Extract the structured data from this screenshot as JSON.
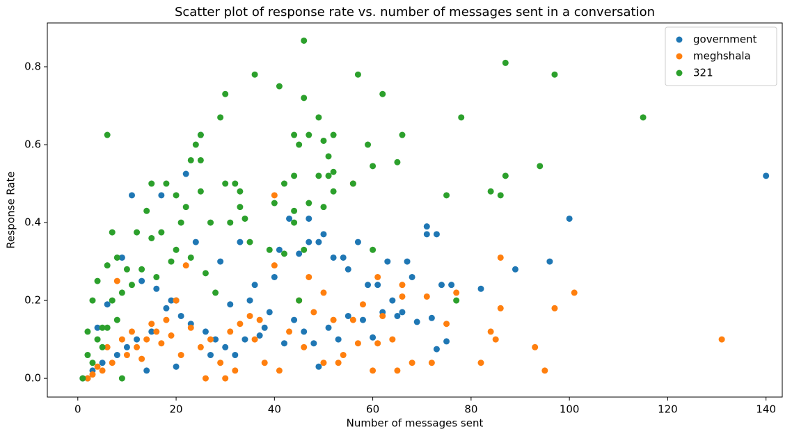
{
  "chart_data": {
    "type": "scatter",
    "title": "Scatter plot of response rate vs. number of messages sent in a conversation",
    "x_label": "Number of messages sent",
    "y_label": "Response Rate",
    "xlim": [
      -6.2,
      143.3
    ],
    "ylim": [
      -0.048,
      0.9125
    ],
    "xticks": [
      0,
      20,
      40,
      60,
      80,
      100,
      120,
      140
    ],
    "yticks": [
      {
        "value": 0,
        "label": "0.0"
      },
      0.2,
      0.4,
      0.6,
      0.8
    ],
    "legend": "upper right",
    "series": [
      {
        "name": "government",
        "color": "#1f77b4",
        "x": [
          140,
          100,
          96,
          89,
          82,
          76,
          74,
          71,
          71,
          73,
          67,
          68,
          69,
          72,
          73,
          75,
          65,
          66,
          63,
          61,
          59,
          60,
          57,
          55,
          54,
          52,
          50,
          49,
          47,
          45,
          43,
          47,
          41,
          40,
          25,
          22,
          11,
          17,
          24,
          29,
          33,
          36,
          20,
          18,
          15,
          12,
          10,
          8,
          5,
          3,
          1,
          2,
          4,
          6,
          9,
          13,
          16,
          19,
          21,
          23,
          26,
          28,
          30,
          32,
          34,
          37,
          38,
          42,
          44,
          46,
          48,
          49,
          51,
          53,
          55,
          58,
          62,
          64,
          14,
          20,
          27,
          31,
          35,
          39
        ],
        "y": [
          0.52,
          0.41,
          0.3,
          0.28,
          0.23,
          0.24,
          0.24,
          0.39,
          0.37,
          0.37,
          0.3,
          0.26,
          0.145,
          0.155,
          0.075,
          0.095,
          0.16,
          0.17,
          0.3,
          0.24,
          0.24,
          0.105,
          0.35,
          0.28,
          0.31,
          0.31,
          0.37,
          0.35,
          0.35,
          0.32,
          0.41,
          0.41,
          0.33,
          0.26,
          0.625,
          0.525,
          0.47,
          0.47,
          0.35,
          0.3,
          0.35,
          0.24,
          0.2,
          0.18,
          0.12,
          0.1,
          0.08,
          0.06,
          0.04,
          0.02,
          0,
          0,
          0.13,
          0.19,
          0.31,
          0.25,
          0.23,
          0.2,
          0.16,
          0.14,
          0.12,
          0.1,
          0.08,
          0.06,
          0.1,
          0.11,
          0.13,
          0.09,
          0.15,
          0.12,
          0.09,
          0.03,
          0.13,
          0.1,
          0.16,
          0.15,
          0.17,
          0.2,
          0.02,
          0.03,
          0.06,
          0.19,
          0.2,
          0.17
        ]
      },
      {
        "name": "meghshala",
        "color": "#ff7f0e",
        "x": [
          131,
          101,
          97,
          95,
          93,
          86,
          86,
          85,
          84,
          82,
          77,
          75,
          72,
          71,
          68,
          65,
          66,
          66,
          64,
          61,
          61,
          60,
          57,
          56,
          56,
          53,
          52,
          50,
          47,
          45,
          40,
          40,
          38,
          35,
          32,
          30,
          26,
          22,
          20,
          18,
          16,
          14,
          12,
          10,
          8,
          7,
          5,
          3,
          2,
          4,
          6,
          9,
          11,
          13,
          15,
          17,
          19,
          21,
          23,
          25,
          27,
          29,
          31,
          33,
          36,
          37,
          41,
          43,
          46,
          48,
          50,
          54,
          58,
          62
        ],
        "y": [
          0.1,
          0.22,
          0.18,
          0.02,
          0.08,
          0.31,
          0.18,
          0.1,
          0.12,
          0.04,
          0.22,
          0.14,
          0.04,
          0.21,
          0.04,
          0.02,
          0.21,
          0.24,
          0.1,
          0.26,
          0.09,
          0.02,
          0.09,
          0.5,
          0.15,
          0.04,
          0.15,
          0.04,
          0.26,
          0.2,
          0.47,
          0.29,
          0.04,
          0.16,
          0.02,
          0,
          0,
          0.29,
          0.2,
          0.15,
          0.12,
          0.1,
          0.08,
          0.06,
          0.25,
          0.04,
          0.02,
          0.01,
          0,
          0.03,
          0.08,
          0.1,
          0.12,
          0.05,
          0.14,
          0.09,
          0.11,
          0.06,
          0.13,
          0.08,
          0.1,
          0.04,
          0.12,
          0.14,
          0.1,
          0.15,
          0.02,
          0.12,
          0.08,
          0.17,
          0.22,
          0.06,
          0.19,
          0.16
        ]
      },
      {
        "name": "321",
        "color": "#2ca02c",
        "x": [
          46,
          87,
          36,
          57,
          97,
          41,
          30,
          62,
          46,
          29,
          49,
          78,
          115,
          6,
          25,
          44,
          47,
          52,
          66,
          24,
          45,
          50,
          59,
          51,
          23,
          25,
          60,
          65,
          94,
          52,
          44,
          49,
          51,
          87,
          15,
          18,
          30,
          32,
          42,
          56,
          20,
          22,
          25,
          33,
          52,
          75,
          84,
          86,
          40,
          47,
          50,
          14,
          44,
          34,
          21,
          27,
          44,
          7,
          12,
          15,
          17,
          31,
          33,
          8,
          10,
          6,
          4,
          3,
          5,
          2,
          1,
          4,
          7,
          9,
          11,
          13,
          16,
          19,
          20,
          23,
          26,
          28,
          39,
          42,
          46,
          60,
          77,
          35,
          45,
          3,
          5,
          9,
          2,
          6,
          8
        ],
        "y": [
          0.867,
          0.81,
          0.78,
          0.78,
          0.78,
          0.75,
          0.73,
          0.73,
          0.72,
          0.67,
          0.67,
          0.67,
          0.67,
          0.625,
          0.625,
          0.625,
          0.625,
          0.625,
          0.625,
          0.6,
          0.6,
          0.61,
          0.6,
          0.57,
          0.56,
          0.56,
          0.545,
          0.555,
          0.545,
          0.53,
          0.52,
          0.52,
          0.52,
          0.52,
          0.5,
          0.5,
          0.5,
          0.5,
          0.5,
          0.5,
          0.47,
          0.44,
          0.48,
          0.48,
          0.48,
          0.47,
          0.48,
          0.47,
          0.45,
          0.45,
          0.44,
          0.43,
          0.43,
          0.41,
          0.4,
          0.4,
          0.4,
          0.375,
          0.375,
          0.36,
          0.375,
          0.4,
          0.44,
          0.31,
          0.28,
          0.29,
          0.25,
          0.2,
          0.13,
          0.06,
          0,
          0.1,
          0.2,
          0.22,
          0.24,
          0.28,
          0.26,
          0.3,
          0.33,
          0.31,
          0.27,
          0.22,
          0.33,
          0.32,
          0.33,
          0.33,
          0.2,
          0.35,
          0.2,
          0.04,
          0.08,
          0,
          0.12,
          0.13,
          0.15
        ]
      }
    ]
  }
}
